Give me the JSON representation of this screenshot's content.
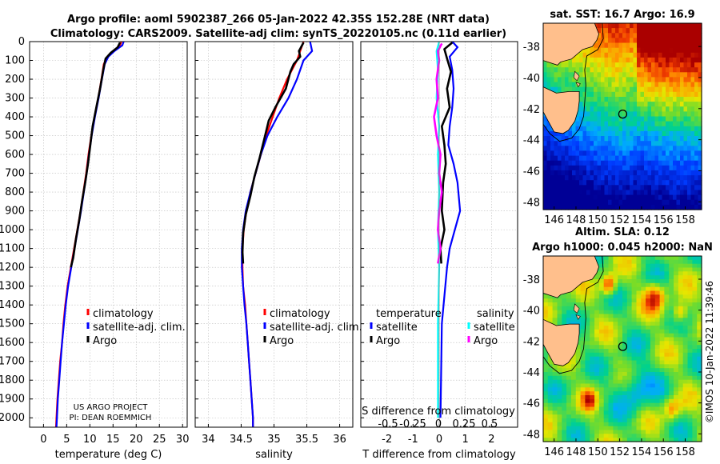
{
  "title": {
    "line1": "Argo profile: aoml 5902387_266 05-Jan-2022 42.35S 152.28E (NRT data)",
    "line2": "Climatology: CARS2009. Satellite-adj clim: synTS_20220105.nc (0.11d earlier)"
  },
  "credit": "©IMOS 10-Jan-2022 11:39:46",
  "project": {
    "line1": "US ARGO PROJECT",
    "line2": "PI: DEAN ROEMMICH"
  },
  "colors": {
    "climatology": "#ff0000",
    "satellite": "#0000ff",
    "argo": "#000000",
    "sat_t_diff": "#0000ff",
    "sat_s_diff": "#00ffff",
    "argo_s_diff": "#ff00ff"
  },
  "chart_data": [
    {
      "type": "line",
      "id": "temperature",
      "xlabel": "temperature (deg C)",
      "ylabel": "",
      "xlim": [
        -3,
        31
      ],
      "ylim": [
        2050,
        0
      ],
      "xticks": [
        0,
        5,
        10,
        15,
        20,
        25,
        30
      ],
      "yticks": [
        0,
        100,
        200,
        300,
        400,
        500,
        600,
        700,
        800,
        900,
        1000,
        1100,
        1200,
        1300,
        1400,
        1500,
        1600,
        1700,
        1800,
        1900,
        2000
      ],
      "grid": true,
      "legend": [
        "climatology",
        "satellite-adj. clim.",
        "Argo"
      ],
      "series": [
        {
          "name": "climatology",
          "color": "#ff0000",
          "points": [
            [
              16.8,
              0
            ],
            [
              16.5,
              20
            ],
            [
              15,
              50
            ],
            [
              13.8,
              80
            ],
            [
              13,
              120
            ],
            [
              12.5,
              200
            ],
            [
              11.8,
              300
            ],
            [
              11,
              400
            ],
            [
              10.3,
              500
            ],
            [
              9.7,
              600
            ],
            [
              9.2,
              700
            ],
            [
              8.6,
              800
            ],
            [
              8,
              900
            ],
            [
              7.3,
              1000
            ],
            [
              6.6,
              1100
            ],
            [
              5.9,
              1200
            ],
            [
              5.2,
              1300
            ],
            [
              4.7,
              1400
            ],
            [
              4.3,
              1500
            ],
            [
              4,
              1600
            ],
            [
              3.6,
              1700
            ],
            [
              3.3,
              1800
            ],
            [
              3,
              1900
            ],
            [
              2.8,
              2000
            ],
            [
              2.7,
              2050
            ]
          ]
        },
        {
          "name": "satellite-adj. clim.",
          "color": "#0000ff",
          "points": [
            [
              17.3,
              0
            ],
            [
              17,
              20
            ],
            [
              15.3,
              50
            ],
            [
              14,
              80
            ],
            [
              13.2,
              120
            ],
            [
              12.6,
              200
            ],
            [
              11.9,
              300
            ],
            [
              11.1,
              400
            ],
            [
              10.4,
              500
            ],
            [
              9.8,
              600
            ],
            [
              9.3,
              700
            ],
            [
              8.7,
              800
            ],
            [
              8.1,
              900
            ],
            [
              7.4,
              1000
            ],
            [
              6.7,
              1100
            ],
            [
              6,
              1200
            ],
            [
              5.3,
              1300
            ],
            [
              4.8,
              1400
            ],
            [
              4.4,
              1500
            ],
            [
              4,
              1600
            ],
            [
              3.7,
              1700
            ],
            [
              3.4,
              1800
            ],
            [
              3.1,
              1900
            ],
            [
              2.9,
              2000
            ],
            [
              2.8,
              2050
            ]
          ]
        },
        {
          "name": "Argo",
          "color": "#000000",
          "points": [
            [
              16.5,
              5
            ],
            [
              16,
              30
            ],
            [
              14.5,
              60
            ],
            [
              13.4,
              90
            ],
            [
              12.9,
              150
            ],
            [
              12.2,
              250
            ],
            [
              11.4,
              350
            ],
            [
              10.6,
              450
            ],
            [
              10.1,
              550
            ],
            [
              9.6,
              650
            ],
            [
              9,
              750
            ],
            [
              8.3,
              850
            ],
            [
              7.7,
              950
            ],
            [
              7,
              1050
            ],
            [
              6.4,
              1150
            ],
            [
              5.9,
              1200
            ]
          ]
        }
      ]
    },
    {
      "type": "line",
      "id": "salinity",
      "xlabel": "salinity",
      "ylabel": "",
      "xlim": [
        33.8,
        36.2
      ],
      "ylim": [
        2050,
        0
      ],
      "xticks": [
        34,
        34.5,
        35,
        35.5,
        36
      ],
      "yticks": [
        0,
        100,
        200,
        300,
        400,
        500,
        600,
        700,
        800,
        900,
        1000,
        1100,
        1200,
        1300,
        1400,
        1500,
        1600,
        1700,
        1800,
        1900,
        2000
      ],
      "grid": true,
      "legend": [
        "climatology",
        "satellite-adj. clim.",
        "Argo"
      ],
      "series": [
        {
          "name": "climatology",
          "color": "#ff0000",
          "points": [
            [
              35.45,
              0
            ],
            [
              35.4,
              50
            ],
            [
              35.35,
              100
            ],
            [
              35.2,
              200
            ],
            [
              35.08,
              300
            ],
            [
              34.98,
              400
            ],
            [
              34.88,
              500
            ],
            [
              34.8,
              600
            ],
            [
              34.72,
              700
            ],
            [
              34.64,
              800
            ],
            [
              34.58,
              900
            ],
            [
              34.54,
              1000
            ],
            [
              34.52,
              1100
            ],
            [
              34.52,
              1200
            ],
            [
              34.53,
              1300
            ],
            [
              34.56,
              1400
            ],
            [
              34.58,
              1500
            ],
            [
              34.6,
              1600
            ],
            [
              34.62,
              1700
            ],
            [
              34.64,
              1800
            ],
            [
              34.66,
              1900
            ],
            [
              34.68,
              2000
            ],
            [
              34.68,
              2050
            ]
          ]
        },
        {
          "name": "satellite-adj. clim.",
          "color": "#0000ff",
          "points": [
            [
              35.55,
              0
            ],
            [
              35.58,
              50
            ],
            [
              35.45,
              100
            ],
            [
              35.35,
              200
            ],
            [
              35.22,
              300
            ],
            [
              35.05,
              400
            ],
            [
              34.9,
              500
            ],
            [
              34.8,
              600
            ],
            [
              34.72,
              700
            ],
            [
              34.64,
              800
            ],
            [
              34.57,
              900
            ],
            [
              34.53,
              1000
            ],
            [
              34.51,
              1100
            ],
            [
              34.51,
              1200
            ],
            [
              34.53,
              1300
            ],
            [
              34.55,
              1400
            ],
            [
              34.58,
              1500
            ],
            [
              34.6,
              1600
            ],
            [
              34.62,
              1700
            ],
            [
              34.64,
              1800
            ],
            [
              34.66,
              1900
            ],
            [
              34.68,
              2000
            ],
            [
              34.68,
              2050
            ]
          ]
        },
        {
          "name": "Argo",
          "color": "#000000",
          "points": [
            [
              35.45,
              5
            ],
            [
              35.38,
              50
            ],
            [
              35.4,
              80
            ],
            [
              35.3,
              120
            ],
            [
              35.25,
              160
            ],
            [
              35.18,
              250
            ],
            [
              35.02,
              350
            ],
            [
              34.92,
              420
            ],
            [
              34.85,
              520
            ],
            [
              34.78,
              620
            ],
            [
              34.7,
              720
            ],
            [
              34.64,
              820
            ],
            [
              34.57,
              920
            ],
            [
              34.53,
              1020
            ],
            [
              34.52,
              1120
            ],
            [
              34.53,
              1180
            ]
          ]
        }
      ]
    },
    {
      "type": "line",
      "id": "difference",
      "xlabel": "T difference from climatology",
      "x2label": "S difference from climatology",
      "ylabel": "",
      "xlim": [
        -3,
        3
      ],
      "ylim": [
        2050,
        0
      ],
      "xticks": [
        -2,
        -1,
        0,
        1,
        2
      ],
      "x2ticks": [
        "-0.5",
        "-0.25",
        "0",
        "0.25",
        "0.5"
      ],
      "yticks": [
        0,
        100,
        200,
        300,
        400,
        500,
        600,
        700,
        800,
        900,
        1000,
        1100,
        1200,
        1300,
        1400,
        1500,
        1600,
        1700,
        1800,
        1900,
        2000
      ],
      "grid": true,
      "legend_temperature": {
        "title": "temperature",
        "items": [
          "satellite",
          "Argo"
        ]
      },
      "legend_salinity": {
        "title": "salinity",
        "items": [
          "satellite",
          "Argo"
        ]
      },
      "series": [
        {
          "name": "temperature satellite",
          "color": "#0000ff",
          "points": [
            [
              0.5,
              0
            ],
            [
              0.7,
              30
            ],
            [
              0.4,
              80
            ],
            [
              0.5,
              150
            ],
            [
              0.55,
              250
            ],
            [
              0.5,
              350
            ],
            [
              0.4,
              450
            ],
            [
              0.35,
              550
            ],
            [
              0.55,
              650
            ],
            [
              0.7,
              750
            ],
            [
              0.8,
              900
            ],
            [
              0.6,
              1000
            ],
            [
              0.4,
              1100
            ],
            [
              0.3,
              1200
            ],
            [
              0.1,
              1500
            ],
            [
              0.05,
              2000
            ]
          ]
        },
        {
          "name": "temperature Argo",
          "color": "#000000",
          "points": [
            [
              0.5,
              5
            ],
            [
              0.2,
              40
            ],
            [
              0.3,
              90
            ],
            [
              0.45,
              160
            ],
            [
              0.3,
              250
            ],
            [
              0.4,
              350
            ],
            [
              0.1,
              450
            ],
            [
              0.2,
              550
            ],
            [
              0.25,
              650
            ],
            [
              0.15,
              750
            ],
            [
              0.1,
              900
            ],
            [
              0.2,
              1000
            ],
            [
              0.05,
              1100
            ],
            [
              0.08,
              1180
            ]
          ]
        },
        {
          "name": "salinity satellite",
          "color": "#00ffff",
          "points": [
            [
              0.0,
              0
            ],
            [
              -0.1,
              50
            ],
            [
              -0.05,
              150
            ],
            [
              -0.1,
              300
            ],
            [
              0.0,
              450
            ],
            [
              -0.05,
              600
            ],
            [
              0.0,
              800
            ],
            [
              -0.05,
              1000
            ],
            [
              0.0,
              1200
            ],
            [
              -0.05,
              1500
            ],
            [
              -0.05,
              2000
            ]
          ]
        },
        {
          "name": "salinity Argo",
          "color": "#ff00ff",
          "points": [
            [
              0.1,
              10
            ],
            [
              -0.05,
              50
            ],
            [
              0.0,
              100
            ],
            [
              -0.1,
              200
            ],
            [
              -0.05,
              300
            ],
            [
              -0.2,
              400
            ],
            [
              -0.1,
              500
            ],
            [
              0.05,
              600
            ],
            [
              0.0,
              700
            ],
            [
              0.1,
              800
            ],
            [
              0.0,
              900
            ],
            [
              -0.05,
              1000
            ],
            [
              0.05,
              1100
            ],
            [
              -0.05,
              1180
            ]
          ]
        }
      ]
    },
    {
      "type": "heatmap",
      "id": "sst-map",
      "title": "sat. SST: 16.7 Argo: 16.9",
      "xticks": [
        146,
        148,
        150,
        152,
        154,
        156,
        158
      ],
      "yticks": [
        -38,
        -40,
        -42,
        -44,
        -46,
        -48
      ],
      "xlim": [
        145,
        159.5
      ],
      "ylim": [
        -48.5,
        -36.5
      ],
      "marker": {
        "lon": 152.28,
        "lat": -42.35
      }
    },
    {
      "type": "heatmap",
      "id": "sla-map",
      "title1": "Altim. SLA: 0.12",
      "title2": "Argo h1000: 0.045 h2000: NaN",
      "xticks": [
        146,
        148,
        150,
        152,
        154,
        156,
        158
      ],
      "yticks": [
        -38,
        -40,
        -42,
        -44,
        -46,
        -48
      ],
      "xlim": [
        145,
        159.5
      ],
      "ylim": [
        -48.5,
        -36.5
      ],
      "marker": {
        "lon": 152.28,
        "lat": -42.35
      }
    }
  ]
}
